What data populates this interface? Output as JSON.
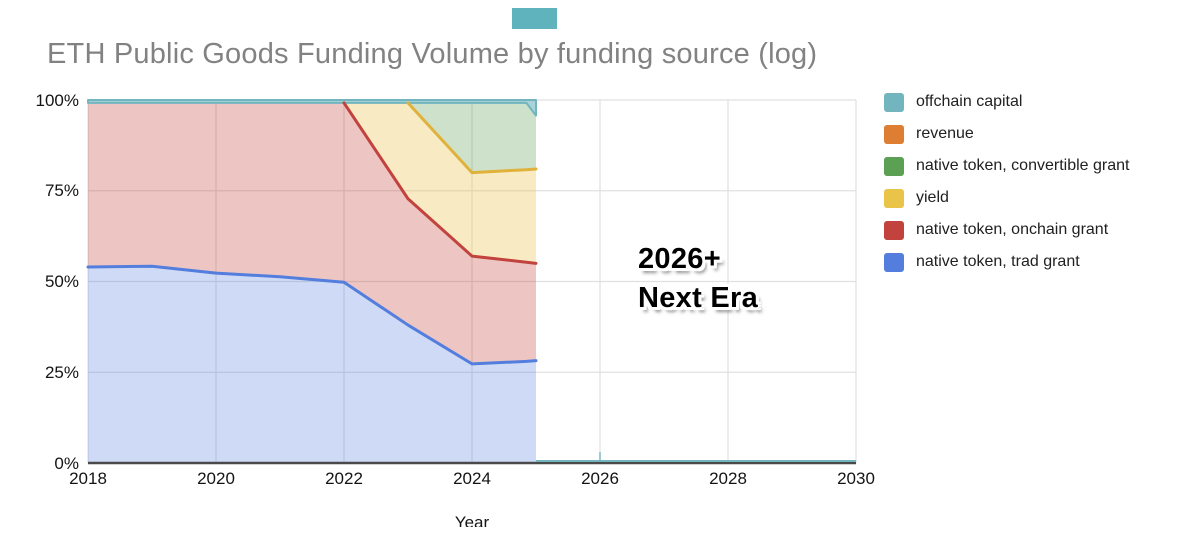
{
  "artifact": {
    "color": "#5fb3bd"
  },
  "chart_data": {
    "type": "area",
    "stacked": "percent",
    "title": "ETH Public Goods Funding Volume by funding source (log)",
    "xlabel": "Year",
    "ylabel": "",
    "grid": true,
    "legend_position": "right",
    "x_range": [
      2018,
      2030
    ],
    "y_range_pct": [
      0,
      100
    ],
    "x_ticks": [
      2018,
      2020,
      2022,
      2024,
      2026,
      2028,
      2030
    ],
    "y_tick_labels": [
      "0%",
      "25%",
      "50%",
      "75%",
      "100%"
    ],
    "y_tick_pcts": [
      0,
      25,
      50,
      75,
      100
    ],
    "x": [
      2018,
      2019,
      2020,
      2021,
      2022,
      2023,
      2024,
      2024.85,
      2025
    ],
    "series": [
      {
        "name": "native token, trad grant",
        "color": "#537edd",
        "fill": "rgba(83,126,221,0.28)",
        "cumulative_top_pct": [
          54,
          54.2,
          52.3,
          51.3,
          49.8,
          38,
          27.3,
          28,
          28.2
        ],
        "line_from": 2018
      },
      {
        "name": "native token, onchain grant",
        "color": "#c2423d",
        "fill": "rgba(194,66,61,0.30)",
        "cumulative_top_pct": [
          99.2,
          99.2,
          99.2,
          99.2,
          99.2,
          72.8,
          57,
          55.3,
          55
        ],
        "line_from": 2022
      },
      {
        "name": "yield",
        "color": "#e0b23c",
        "fill": "rgba(234,195,73,0.33)",
        "cumulative_top_pct": [
          99.2,
          99.2,
          99.2,
          99.2,
          99.2,
          99.2,
          80,
          80.8,
          81
        ],
        "line_from": 2023
      },
      {
        "name": "native token, convertible grant",
        "color": "#5ca054",
        "fill": "rgba(92,160,84,0.30)",
        "cumulative_top_pct": [
          99.2,
          99.2,
          99.2,
          99.2,
          99.2,
          99.2,
          99.2,
          99.2,
          95.7
        ],
        "line_from": null
      },
      {
        "name": "revenue",
        "color": "#dd7e32",
        "fill": "rgba(221,126,50,0.30)",
        "cumulative_top_pct": [
          99.2,
          99.2,
          99.2,
          99.2,
          99.2,
          99.2,
          99.2,
          99.2,
          95.7
        ],
        "line_from": null
      },
      {
        "name": "offchain capital",
        "color": "#72b5bf",
        "fill": "rgba(114,181,191,0.6)",
        "cumulative_top_pct": [
          100,
          100,
          100,
          100,
          100,
          100,
          100,
          100,
          100
        ],
        "line_from": null,
        "band_stroke": true
      }
    ],
    "baseline_extension": {
      "series": "offchain capital",
      "from_x": 2025,
      "to_x": 2030,
      "pct": 0.5,
      "tick_x": 2026,
      "tick_pct": 3
    },
    "annotation": {
      "line1": "2026+",
      "line2": "Next Era",
      "x": 2026.6,
      "y_pct": 55
    }
  },
  "legend": {
    "items": [
      {
        "label": "offchain capital",
        "color": "#72b5bf"
      },
      {
        "label": "revenue",
        "color": "#dd7e32"
      },
      {
        "label": "native token, convertible grant",
        "color": "#5ca054"
      },
      {
        "label": "yield",
        "color": "#eac349"
      },
      {
        "label": "native token, onchain grant",
        "color": "#c2423d"
      },
      {
        "label": "native token, trad grant",
        "color": "#537edd"
      }
    ]
  },
  "axis_colors": {
    "gridline": "#e0e0e0",
    "baseline": "#4a4a4a"
  }
}
